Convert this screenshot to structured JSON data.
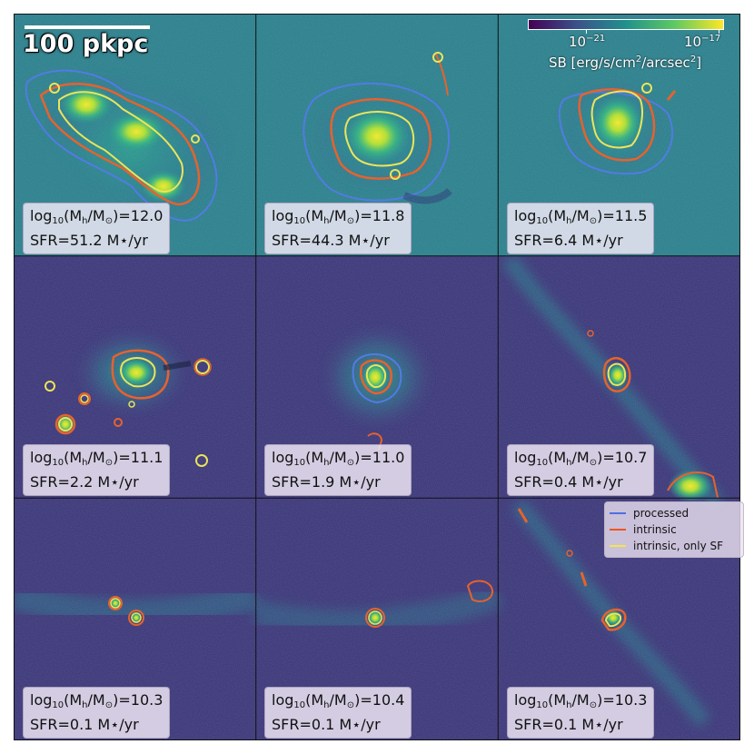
{
  "scale_bar": {
    "label": "100 pkpc"
  },
  "colorbar": {
    "tick_low": {
      "base": "10",
      "exp": "−21"
    },
    "tick_high": {
      "base": "10",
      "exp": "−17"
    },
    "title_prefix": "SB [erg/s/cm",
    "title_exp": "2",
    "title_mid": "/arcsec",
    "title_suffix": "]",
    "colormap": "viridis"
  },
  "legend": {
    "items": [
      {
        "label": "processed",
        "color": "#4c6fe6"
      },
      {
        "label": "intrinsic",
        "color": "#f0541c"
      },
      {
        "label": "intrinsic, only SF",
        "color": "#f5e44c"
      }
    ]
  },
  "panels": [
    {
      "logM_prefix": "log",
      "logM_sub": "10",
      "logM_body": "(M",
      "logM_msub": "h",
      "logM_rest": "/M",
      "logM_sun": "⊙",
      "logM_value": ")=12.0",
      "sfr": "SFR=51.2 M⋆/yr"
    },
    {
      "logM_prefix": "log",
      "logM_sub": "10",
      "logM_body": "(M",
      "logM_msub": "h",
      "logM_rest": "/M",
      "logM_sun": "⊙",
      "logM_value": ")=11.8",
      "sfr": "SFR=44.3 M⋆/yr"
    },
    {
      "logM_prefix": "log",
      "logM_sub": "10",
      "logM_body": "(M",
      "logM_msub": "h",
      "logM_rest": "/M",
      "logM_sun": "⊙",
      "logM_value": ")=11.5",
      "sfr": "SFR=6.4 M⋆/yr"
    },
    {
      "logM_prefix": "log",
      "logM_sub": "10",
      "logM_body": "(M",
      "logM_msub": "h",
      "logM_rest": "/M",
      "logM_sun": "⊙",
      "logM_value": ")=11.1",
      "sfr": "SFR=2.2 M⋆/yr"
    },
    {
      "logM_prefix": "log",
      "logM_sub": "10",
      "logM_body": "(M",
      "logM_msub": "h",
      "logM_rest": "/M",
      "logM_sun": "⊙",
      "logM_value": ")=11.0",
      "sfr": "SFR=1.9 M⋆/yr"
    },
    {
      "logM_prefix": "log",
      "logM_sub": "10",
      "logM_body": "(M",
      "logM_msub": "h",
      "logM_rest": "/M",
      "logM_sun": "⊙",
      "logM_value": ")=10.7",
      "sfr": "SFR=0.4 M⋆/yr"
    },
    {
      "logM_prefix": "log",
      "logM_sub": "10",
      "logM_body": "(M",
      "logM_msub": "h",
      "logM_rest": "/M",
      "logM_sun": "⊙",
      "logM_value": ")=10.3",
      "sfr": "SFR=0.1 M⋆/yr"
    },
    {
      "logM_prefix": "log",
      "logM_sub": "10",
      "logM_body": "(M",
      "logM_msub": "h",
      "logM_rest": "/M",
      "logM_sun": "⊙",
      "logM_value": ")=10.4",
      "sfr": "SFR=0.1 M⋆/yr"
    },
    {
      "logM_prefix": "log",
      "logM_sub": "10",
      "logM_body": "(M",
      "logM_msub": "h",
      "logM_rest": "/M",
      "logM_sun": "⊙",
      "logM_value": ")=10.3",
      "sfr": "SFR=0.1 M⋆/yr"
    }
  ]
}
